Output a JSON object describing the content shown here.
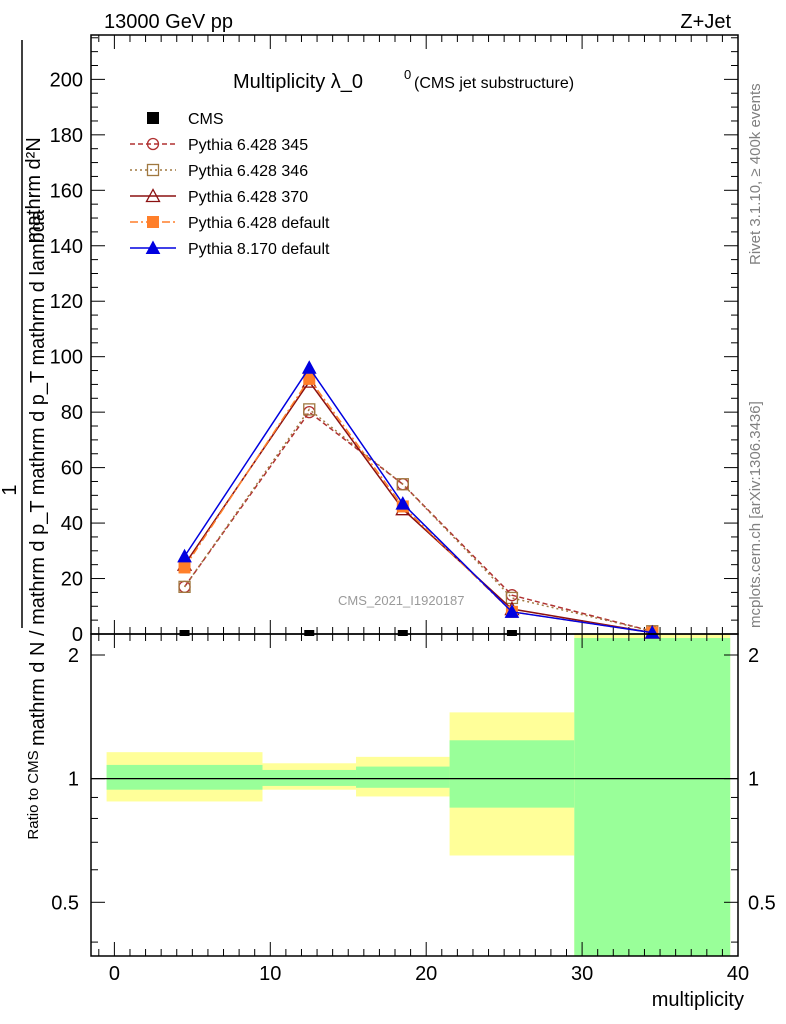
{
  "header": {
    "left": "13000 GeV pp",
    "right": "Z+Jet"
  },
  "side_labels": {
    "rivet": "Rivet 3.1.10, ≥ 400k events",
    "mcplots": "mcplots.cern.ch [arXiv:1306.3436]"
  },
  "chart_data": [
    {
      "type": "line",
      "title_main": "Multiplicity λ_0",
      "title_sup": "0",
      "title_note": "(CMS jet substructure)",
      "watermark": "CMS_2021_I1920187",
      "ylabel_numerator": "mathrm d²N",
      "ylabel_denominator": "mathrm d N / mathrm d p_T mathrm d p_T mathrm d lambda",
      "ylabel_one": "1",
      "xlim": [
        -1.5,
        40
      ],
      "ylim": [
        0,
        216
      ],
      "yticks": [
        0,
        20,
        40,
        60,
        80,
        100,
        120,
        140,
        160,
        180,
        200
      ],
      "x_centers": [
        4.5,
        12.5,
        18.5,
        25.5,
        34.5
      ],
      "series": [
        {
          "name": "CMS",
          "color": "#000000",
          "marker": "square-filled",
          "dash": "none",
          "values": [
            0,
            0,
            0,
            0,
            0
          ]
        },
        {
          "name": "Pythia 6.428 345",
          "color": "#b03030",
          "marker": "circle-open",
          "dash": "5,3",
          "values": [
            17,
            80,
            54,
            14,
            1
          ]
        },
        {
          "name": "Pythia 6.428 346",
          "color": "#a07840",
          "marker": "square-open",
          "dash": "2,3",
          "values": [
            17,
            81,
            54,
            13,
            1
          ]
        },
        {
          "name": "Pythia 6.428 370",
          "color": "#8b1010",
          "marker": "triangle-open",
          "dash": "none",
          "values": [
            25,
            91,
            45,
            9,
            0.5
          ]
        },
        {
          "name": "Pythia 6.428 default",
          "color": "#ff7f2a",
          "marker": "square-filled",
          "dash": "8,3,2,3",
          "values": [
            24,
            92,
            46,
            8,
            0.5
          ]
        },
        {
          "name": "Pythia 8.170 default",
          "color": "#0000e0",
          "marker": "triangle-filled",
          "dash": "none",
          "values": [
            28,
            96,
            47,
            8,
            0.5
          ]
        }
      ]
    },
    {
      "type": "area",
      "ylabel": "Ratio to CMS",
      "xlabel": "multiplicity",
      "xlim": [
        -1.5,
        40
      ],
      "ylim": [
        0.37,
        2.25
      ],
      "log_scale": true,
      "yticks": [
        0.5,
        1,
        2
      ],
      "xticks": [
        0,
        10,
        20,
        30,
        40
      ],
      "reference": 1,
      "bins": [
        {
          "x0": -0.5,
          "x1": 9.5,
          "yellow": [
            0.88,
            1.16
          ],
          "green": [
            0.94,
            1.08
          ]
        },
        {
          "x0": 9.5,
          "x1": 15.5,
          "yellow": [
            0.94,
            1.09
          ],
          "green": [
            0.96,
            1.05
          ]
        },
        {
          "x0": 15.5,
          "x1": 21.5,
          "yellow": [
            0.905,
            1.13
          ],
          "green": [
            0.95,
            1.07
          ]
        },
        {
          "x0": 21.5,
          "x1": 29.5,
          "yellow": [
            0.65,
            1.45
          ],
          "green": [
            0.85,
            1.24
          ]
        },
        {
          "x0": 29.5,
          "x1": 39.5,
          "yellow": [
            0.37,
            2.25
          ],
          "green": [
            0.37,
            2.2
          ]
        }
      ]
    }
  ]
}
